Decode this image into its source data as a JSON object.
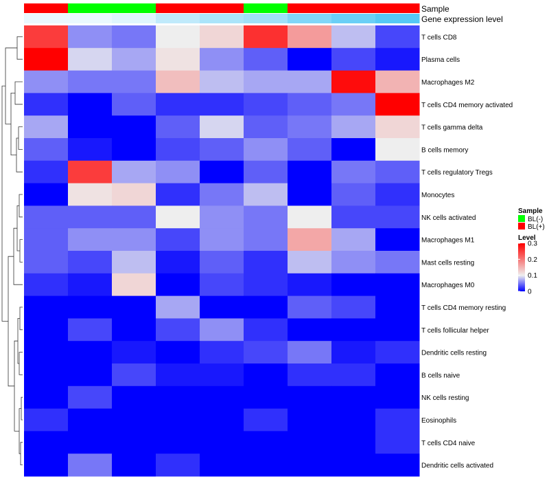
{
  "chart_data": {
    "type": "heatmap",
    "annotation_titles": {
      "sample": "Sample",
      "expression": "Gene expression level"
    },
    "columns": [
      {
        "sample": "BL(+)",
        "expression_level": 0.02
      },
      {
        "sample": "BL(-)",
        "expression_level": 0.02
      },
      {
        "sample": "BL(-)",
        "expression_level": 0.03
      },
      {
        "sample": "BL(+)",
        "expression_level": 0.06
      },
      {
        "sample": "BL(+)",
        "expression_level": 0.08
      },
      {
        "sample": "BL(-)",
        "expression_level": 0.09
      },
      {
        "sample": "BL(+)",
        "expression_level": 0.12
      },
      {
        "sample": "BL(+)",
        "expression_level": 0.14
      },
      {
        "sample": "BL(+)",
        "expression_level": 0.16
      }
    ],
    "rows": [
      "T cells CD8",
      "Plasma cells",
      "Macrophages M2",
      "T cells CD4 memory activated",
      "T cells gamma delta",
      "B cells memory",
      "T cells regulatory  Tregs",
      "Monocytes",
      "NK cells activated",
      "Macrophages M1",
      "Mast cells resting",
      "Macrophages M0",
      "T cells CD4 memory resting",
      "T cells follicular helper",
      "Dendritic cells resting",
      "B cells naive",
      "NK cells resting",
      "Eosinophils",
      "T cells CD4 naive",
      "Dendritic cells activated"
    ],
    "values": [
      [
        0.25,
        0.06,
        0.05,
        0.1,
        0.12,
        0.26,
        0.17,
        0.08,
        0.03
      ],
      [
        0.3,
        0.09,
        0.07,
        0.11,
        0.06,
        0.04,
        0.0,
        0.03,
        0.01
      ],
      [
        0.06,
        0.05,
        0.05,
        0.14,
        0.08,
        0.07,
        0.07,
        0.29,
        0.15
      ],
      [
        0.02,
        0.0,
        0.04,
        0.02,
        0.02,
        0.03,
        0.04,
        0.05,
        0.3
      ],
      [
        0.07,
        0.0,
        0.0,
        0.04,
        0.09,
        0.04,
        0.05,
        0.07,
        0.12
      ],
      [
        0.04,
        0.01,
        0.0,
        0.03,
        0.04,
        0.06,
        0.04,
        0.0,
        0.1
      ],
      [
        0.02,
        0.25,
        0.07,
        0.06,
        0.0,
        0.04,
        0.0,
        0.05,
        0.04
      ],
      [
        0.0,
        0.11,
        0.12,
        0.02,
        0.05,
        0.08,
        0.0,
        0.04,
        0.02
      ],
      [
        0.04,
        0.04,
        0.04,
        0.1,
        0.06,
        0.05,
        0.1,
        0.03,
        0.03
      ],
      [
        0.04,
        0.06,
        0.06,
        0.03,
        0.06,
        0.05,
        0.16,
        0.07,
        0.0
      ],
      [
        0.04,
        0.03,
        0.08,
        0.01,
        0.04,
        0.02,
        0.08,
        0.06,
        0.05
      ],
      [
        0.02,
        0.01,
        0.12,
        0.0,
        0.03,
        0.02,
        0.01,
        0.0,
        0.0
      ],
      [
        0.0,
        0.0,
        0.0,
        0.07,
        0.0,
        0.0,
        0.04,
        0.03,
        0.0
      ],
      [
        0.0,
        0.03,
        0.0,
        0.03,
        0.06,
        0.02,
        0.0,
        0.0,
        0.0
      ],
      [
        0.0,
        0.0,
        0.01,
        0.0,
        0.02,
        0.03,
        0.05,
        0.01,
        0.02
      ],
      [
        0.0,
        0.0,
        0.03,
        0.01,
        0.01,
        0.0,
        0.02,
        0.02,
        0.0
      ],
      [
        0.0,
        0.03,
        0.0,
        0.0,
        0.0,
        0.0,
        0.0,
        0.0,
        0.0
      ],
      [
        0.02,
        0.0,
        0.0,
        0.0,
        0.0,
        0.02,
        0.0,
        0.0,
        0.02
      ],
      [
        0.0,
        0.0,
        0.0,
        0.0,
        0.0,
        0.0,
        0.0,
        0.0,
        0.02
      ],
      [
        0.0,
        0.05,
        0.0,
        0.02,
        0.0,
        0.0,
        0.0,
        0.0,
        0.0
      ]
    ],
    "color_scale": {
      "min": 0,
      "mid": 0.1,
      "max": 0.3,
      "low_color": "#0000ff",
      "mid_color": "#eeeeee",
      "high_color": "#ff0000"
    },
    "expression_scale": {
      "min": 0,
      "max": 0.16,
      "low_color": "#ffffff",
      "high_color": "#56c8f5"
    },
    "legend": {
      "sample_title": "Sample",
      "sample_entries": [
        {
          "label": "BL(-)",
          "color": "#00ff00"
        },
        {
          "label": "BL(+)",
          "color": "#ff0000"
        }
      ],
      "level_title": "Level",
      "level_ticks": [
        "0.3",
        "0.2",
        "0.1",
        "0"
      ],
      "level_tick_values": [
        0.3,
        0.2,
        0.1,
        0
      ],
      "placement": "right"
    },
    "dendrogram": "rows"
  }
}
